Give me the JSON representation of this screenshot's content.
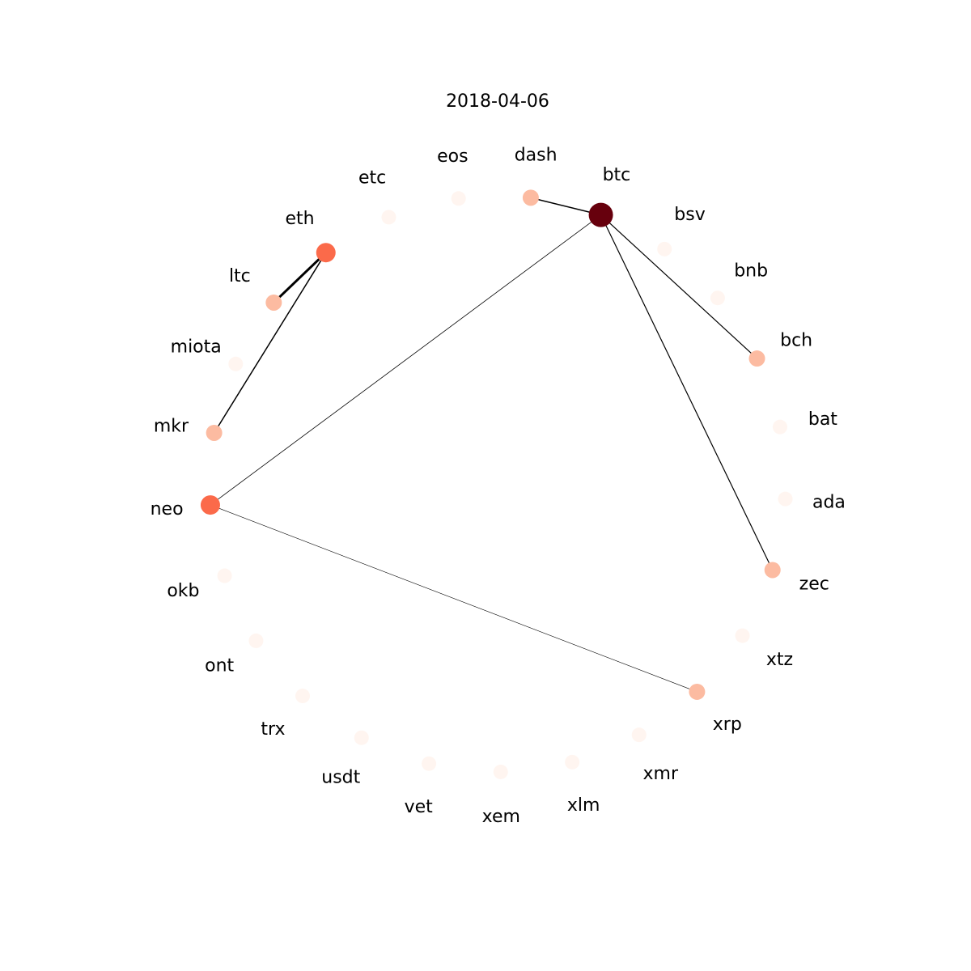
{
  "title": "2018-04-06",
  "color_scale": [
    "#fff5f0",
    "#fcbba1",
    "#fb6a4a",
    "#67000d"
  ],
  "nodes": [
    {
      "id": "btc",
      "level": 3
    },
    {
      "id": "bsv",
      "level": 0
    },
    {
      "id": "bnb",
      "level": 0
    },
    {
      "id": "bch",
      "level": 1
    },
    {
      "id": "bat",
      "level": 0
    },
    {
      "id": "ada",
      "level": 0
    },
    {
      "id": "zec",
      "level": 1
    },
    {
      "id": "xtz",
      "level": 0
    },
    {
      "id": "xrp",
      "level": 1
    },
    {
      "id": "xmr",
      "level": 0
    },
    {
      "id": "xlm",
      "level": 0
    },
    {
      "id": "xem",
      "level": 0
    },
    {
      "id": "vet",
      "level": 0
    },
    {
      "id": "usdt",
      "level": 0
    },
    {
      "id": "trx",
      "level": 0
    },
    {
      "id": "ont",
      "level": 0
    },
    {
      "id": "okb",
      "level": 0
    },
    {
      "id": "neo",
      "level": 2
    },
    {
      "id": "mkr",
      "level": 1
    },
    {
      "id": "miota",
      "level": 0
    },
    {
      "id": "ltc",
      "level": 1
    },
    {
      "id": "eth",
      "level": 2
    },
    {
      "id": "etc",
      "level": 0
    },
    {
      "id": "eos",
      "level": 0
    },
    {
      "id": "dash",
      "level": 1
    }
  ],
  "edges": [
    {
      "source": "btc",
      "target": "dash",
      "weight": 1.5
    },
    {
      "source": "btc",
      "target": "bch",
      "weight": 1.2
    },
    {
      "source": "btc",
      "target": "zec",
      "weight": 1.2
    },
    {
      "source": "btc",
      "target": "neo",
      "weight": 0.8
    },
    {
      "source": "neo",
      "target": "xrp",
      "weight": 0.6
    },
    {
      "source": "eth",
      "target": "ltc",
      "weight": 3.0
    },
    {
      "source": "eth",
      "target": "mkr",
      "weight": 1.5
    }
  ]
}
